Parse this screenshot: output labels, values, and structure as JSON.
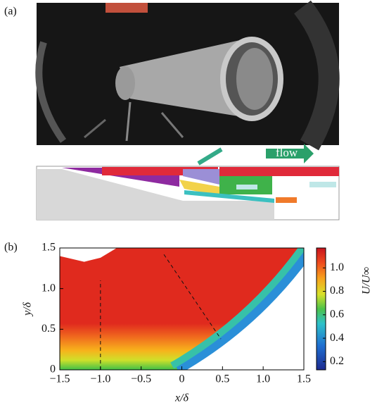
{
  "panel_a": {
    "label": "(a)",
    "flow_label": "flow"
  },
  "chart_data": {
    "type": "contour",
    "panel_label": "(b)",
    "x_label": "x/δ",
    "y_label": "y/δ",
    "xlim": [
      -1.5,
      1.5
    ],
    "ylim": [
      0,
      1.5
    ],
    "xticks": [
      {
        "value": -1.5,
        "label": "−1.5"
      },
      {
        "value": -1,
        "label": "−1.0"
      },
      {
        "value": -0.5,
        "label": "−0.5"
      },
      0,
      0.5,
      {
        "value": 1,
        "label": "1.0"
      },
      1.5
    ],
    "yticks": [
      0,
      0.5,
      {
        "value": 1,
        "label": "1.0"
      },
      1.5
    ],
    "colorbar": {
      "label": "U/U∞",
      "lim": [
        0.13,
        1.17
      ],
      "ticks": [
        0.2,
        0.4,
        0.6,
        0.8,
        {
          "value": 1,
          "label": "1.0"
        }
      ]
    },
    "lines": [
      {
        "x": [
          -1,
          -1
        ],
        "y": [
          0,
          1.1
        ]
      },
      {
        "x": [
          -0.22,
          0.48
        ],
        "y": [
          1.42,
          0.38
        ]
      }
    ]
  }
}
